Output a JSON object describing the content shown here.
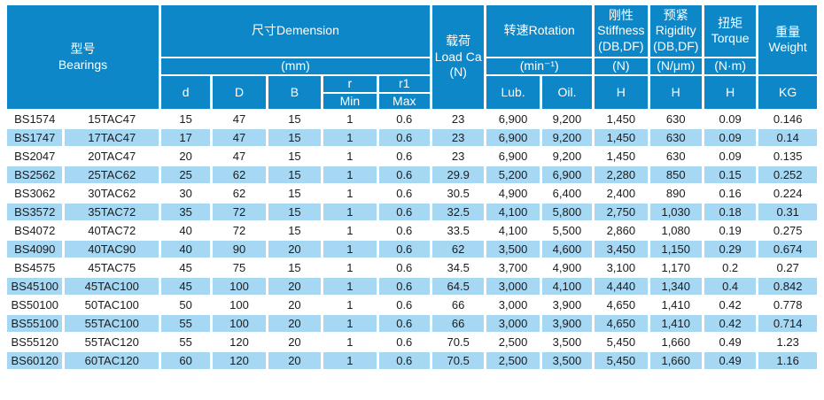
{
  "colors": {
    "header_bg": "#0d87c7",
    "row_alt_bg": "#a7d8f3",
    "header_text": "#ffffff",
    "body_text": "#1c1c1c"
  },
  "table": {
    "header": {
      "model_zh": "型号",
      "model_en": "Bearings",
      "dimension": "尺寸Demension",
      "dimension_unit": "(mm)",
      "col_d": "d",
      "col_D": "D",
      "col_B": "B",
      "col_r": "r",
      "col_r_min": "Min",
      "col_r1": "r1",
      "col_r1_max": "Max",
      "load_zh": "载荷",
      "load_en": "Load Ca",
      "load_unit": "(N)",
      "rotation": "转速Rotation",
      "rotation_unit": "(min⁻¹)",
      "col_lub": "Lub.",
      "col_oil": "Oil.",
      "stiffness_zh": "刚性",
      "stiffness_en": "Stiffness",
      "stiffness_cfg": "(DB,DF)",
      "stiffness_unit": "(N)",
      "stiffness_col": "H",
      "rigidity_zh": "预紧",
      "rigidity_en": "Rigidity",
      "rigidity_cfg": "(DB,DF)",
      "rigidity_unit": "(N/μm)",
      "rigidity_col": "H",
      "torque_zh": "扭矩",
      "torque_en": "Torque",
      "torque_unit": "(N·m)",
      "torque_col": "H",
      "weight_zh": "重量",
      "weight_en": "Weight",
      "weight_unit": "KG"
    },
    "rows": [
      [
        "BS1574",
        "15TAC47",
        "15",
        "47",
        "15",
        "1",
        "0.6",
        "23",
        "6,900",
        "9,200",
        "1,450",
        "630",
        "0.09",
        "0.146"
      ],
      [
        "BS1747",
        "17TAC47",
        "17",
        "47",
        "15",
        "1",
        "0.6",
        "23",
        "6,900",
        "9,200",
        "1,450",
        "630",
        "0.09",
        "0.14"
      ],
      [
        "BS2047",
        "20TAC47",
        "20",
        "47",
        "15",
        "1",
        "0.6",
        "23",
        "6,900",
        "9,200",
        "1,450",
        "630",
        "0.09",
        "0.135"
      ],
      [
        "BS2562",
        "25TAC62",
        "25",
        "62",
        "15",
        "1",
        "0.6",
        "29.9",
        "5,200",
        "6,900",
        "2,280",
        "850",
        "0.15",
        "0.252"
      ],
      [
        "BS3062",
        "30TAC62",
        "30",
        "62",
        "15",
        "1",
        "0.6",
        "30.5",
        "4,900",
        "6,400",
        "2,400",
        "890",
        "0.16",
        "0.224"
      ],
      [
        "BS3572",
        "35TAC72",
        "35",
        "72",
        "15",
        "1",
        "0.6",
        "32.5",
        "4,100",
        "5,800",
        "2,750",
        "1,030",
        "0.18",
        "0.31"
      ],
      [
        "BS4072",
        "40TAC72",
        "40",
        "72",
        "15",
        "1",
        "0.6",
        "33.5",
        "4,100",
        "5,500",
        "2,860",
        "1,080",
        "0.19",
        "0.275"
      ],
      [
        "BS4090",
        "40TAC90",
        "40",
        "90",
        "20",
        "1",
        "0.6",
        "62",
        "3,500",
        "4,600",
        "3,450",
        "1,150",
        "0.29",
        "0.674"
      ],
      [
        "BS4575",
        "45TAC75",
        "45",
        "75",
        "15",
        "1",
        "0.6",
        "34.5",
        "3,700",
        "4,900",
        "3,100",
        "1,170",
        "0.2",
        "0.27"
      ],
      [
        "BS45100",
        "45TAC100",
        "45",
        "100",
        "20",
        "1",
        "0.6",
        "64.5",
        "3,000",
        "4,100",
        "4,440",
        "1,340",
        "0.4",
        "0.842"
      ],
      [
        "BS50100",
        "50TAC100",
        "50",
        "100",
        "20",
        "1",
        "0.6",
        "66",
        "3,000",
        "3,900",
        "4,650",
        "1,410",
        "0.42",
        "0.778"
      ],
      [
        "BS55100",
        "55TAC100",
        "55",
        "100",
        "20",
        "1",
        "0.6",
        "66",
        "3,000",
        "3,900",
        "4,650",
        "1,410",
        "0.42",
        "0.714"
      ],
      [
        "BS55120",
        "55TAC120",
        "55",
        "120",
        "20",
        "1",
        "0.6",
        "70.5",
        "2,500",
        "3,500",
        "5,450",
        "1,660",
        "0.49",
        "1.23"
      ],
      [
        "BS60120",
        "60TAC120",
        "60",
        "120",
        "20",
        "1",
        "0.6",
        "70.5",
        "2,500",
        "3,500",
        "5,450",
        "1,660",
        "0.49",
        "1.16"
      ]
    ]
  }
}
